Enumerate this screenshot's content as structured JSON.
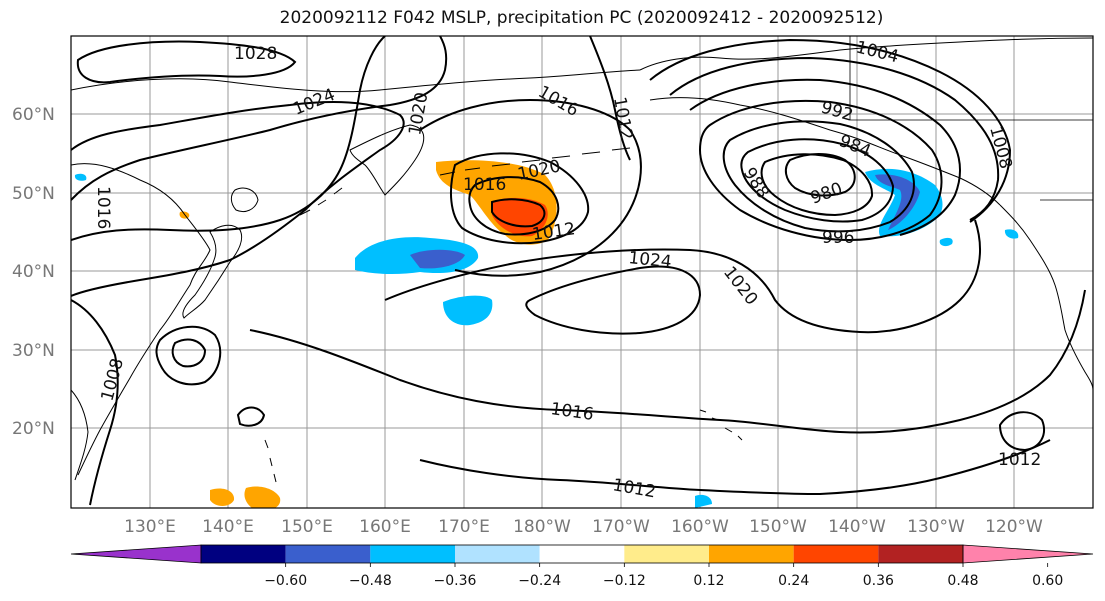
{
  "title": "2020092112 F042 MSLP, precipitation PC (2020092412 - 2020092512)",
  "lat_labels": [
    "60°N",
    "50°N",
    "40°N",
    "30°N",
    "20°N"
  ],
  "lon_labels": [
    "130°E",
    "140°E",
    "150°E",
    "160°E",
    "170°E",
    "180°W",
    "170°W",
    "160°W",
    "150°W",
    "140°W",
    "130°W",
    "120°W"
  ],
  "contour_labels": [
    "1028",
    "1024",
    "1020",
    "1016",
    "1012",
    "1004",
    "992",
    "984",
    "980",
    "988",
    "996",
    "1008",
    "1016",
    "1020",
    "1016",
    "1012",
    "1024",
    "1020",
    "1016",
    "1008",
    "1012",
    "1012"
  ],
  "colorbar": {
    "colors": [
      "#9932cc",
      "#000080",
      "#3a5fcd",
      "#00bfff",
      "#b0e2ff",
      "#ffffff",
      "#ffec8b",
      "#ffa500",
      "#ff4500",
      "#b22222",
      "#ff82ab"
    ],
    "ticks": [
      "−0.60",
      "−0.48",
      "−0.36",
      "−0.24",
      "−0.12",
      "0.12",
      "0.24",
      "0.36",
      "0.48",
      "0.60"
    ]
  }
}
